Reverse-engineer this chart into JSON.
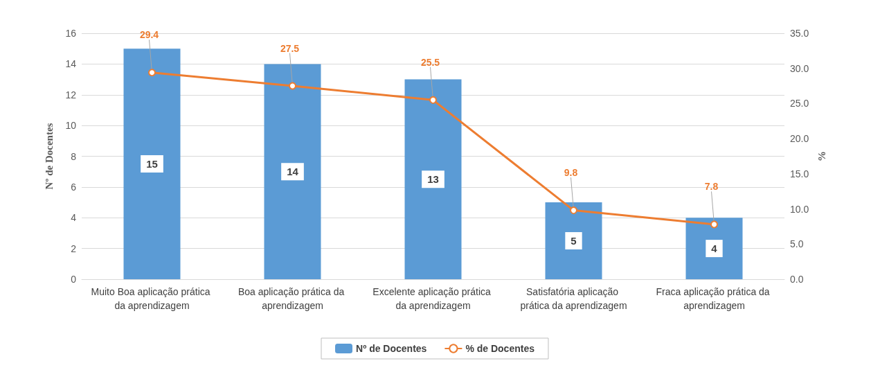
{
  "chart_data": {
    "type": "bar",
    "categories": [
      "Muito Boa aplicação prática da aprendizagem",
      "Boa aplicação prática da aprendizagem",
      "Excelente aplicação prática da aprendizagem",
      "Satisfatória aplicação prática da aprendizagem",
      "Fraca aplicação prática da aprendizagem"
    ],
    "series": [
      {
        "name": "Nº de Docentes",
        "color": "#5b9bd5",
        "values": [
          15,
          14,
          13,
          5,
          4
        ]
      },
      {
        "name": "% de Docentes",
        "type": "line",
        "axis": "y2",
        "color": "#ed7d31",
        "values": [
          29.4,
          27.5,
          25.5,
          9.8,
          7.8
        ]
      }
    ],
    "ylabel": "Nº de Docentes",
    "y2label": "%",
    "ylim": [
      0,
      16
    ],
    "yticks": [
      0,
      2,
      4,
      6,
      8,
      10,
      12,
      14,
      16
    ],
    "y2lim": [
      0,
      35
    ],
    "y2ticks": [
      {
        "value": 0,
        "label": "0.0"
      },
      {
        "value": 5,
        "label": "5.0"
      },
      {
        "value": 10,
        "label": "10.0"
      },
      {
        "value": 15,
        "label": "15.0"
      },
      {
        "value": 20,
        "label": "20.0"
      },
      {
        "value": 25,
        "label": "25.0"
      },
      {
        "value": 30,
        "label": "30.0"
      },
      {
        "value": 35,
        "label": "35.0"
      }
    ],
    "grid": "y",
    "legend": "bottom",
    "marker": "circle",
    "data_labels": true
  }
}
